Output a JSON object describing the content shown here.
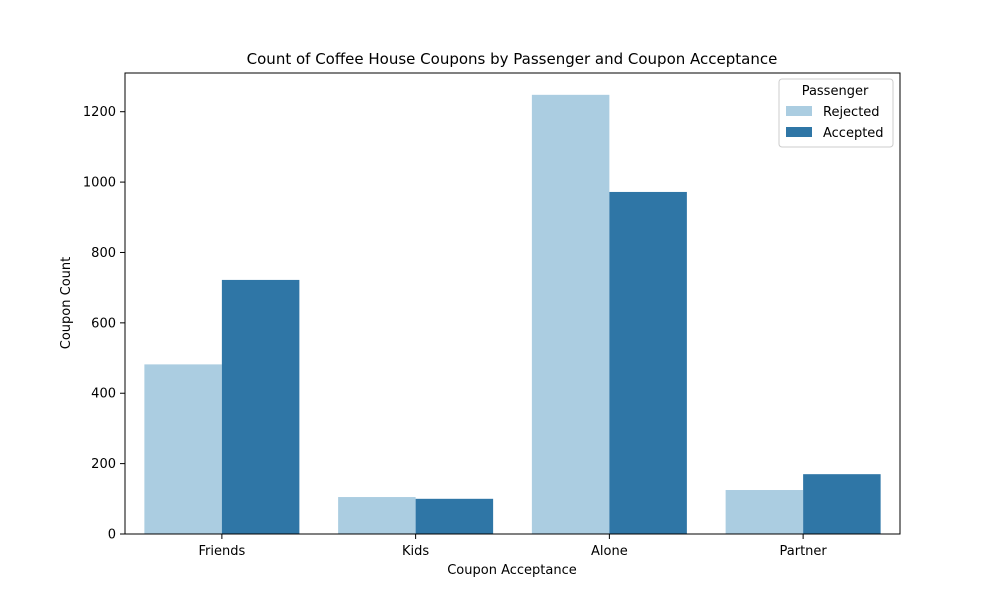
{
  "chart_data": {
    "type": "bar",
    "title": "Count of Coffee House Coupons by Passenger and Coupon Acceptance",
    "xlabel": "Coupon Acceptance",
    "ylabel": "Coupon Count",
    "categories": [
      "Friends",
      "Kids",
      "Alone",
      "Partner"
    ],
    "series": [
      {
        "name": "Rejected",
        "color": "#abcde1",
        "values": [
          482,
          105,
          1248,
          125
        ]
      },
      {
        "name": "Accepted",
        "color": "#2f76a6",
        "values": [
          722,
          100,
          972,
          170
        ]
      }
    ],
    "ylim": [
      0,
      1310
    ],
    "yticks": [
      0,
      200,
      400,
      600,
      800,
      1000,
      1200
    ],
    "grid": false,
    "legend": {
      "title": "Passenger",
      "position": "top-right"
    }
  }
}
